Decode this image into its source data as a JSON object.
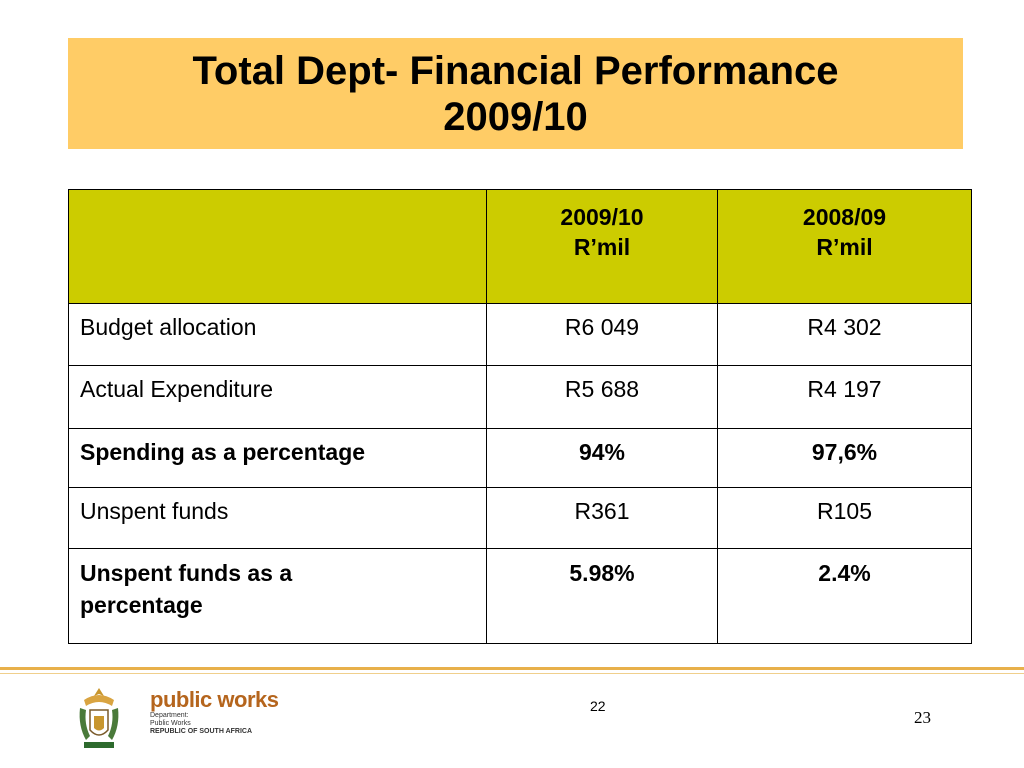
{
  "title": {
    "line1": "Total Dept- Financial Performance",
    "line2": "2009/10"
  },
  "table": {
    "headers": [
      {
        "year": "",
        "unit": ""
      },
      {
        "year": "2009/10",
        "unit": "R’mil"
      },
      {
        "year": "2008/09",
        "unit": "R’mil"
      }
    ],
    "rows": [
      {
        "label": "Budget allocation",
        "v2009": "R6 049",
        "v2008": "R4 302",
        "bold": false
      },
      {
        "label": "Actual Expenditure",
        "v2009": "R5 688",
        "v2008": "R4 197",
        "bold": false
      },
      {
        "label": "Spending as a percentage",
        "v2009": "94%",
        "v2008": "97,6%",
        "bold": true
      },
      {
        "label": "Unspent funds",
        "v2009": "R361",
        "v2008": "R105",
        "bold": false
      },
      {
        "label_line1": "Unspent funds as a",
        "label_line2": "percentage",
        "v2009": "5.98%",
        "v2008": "2.4%",
        "bold": true
      }
    ]
  },
  "footer": {
    "brand_name": "public works",
    "brand_lines": [
      "Department:",
      "Public Works",
      "REPUBLIC OF SOUTH AFRICA"
    ],
    "slide_number": "22",
    "page_number": "23"
  },
  "colors": {
    "title_bg": "#ffcc66",
    "header_bg": "#cccc00",
    "footer_rule": "#e8b04a",
    "brand": "#b5651d"
  }
}
